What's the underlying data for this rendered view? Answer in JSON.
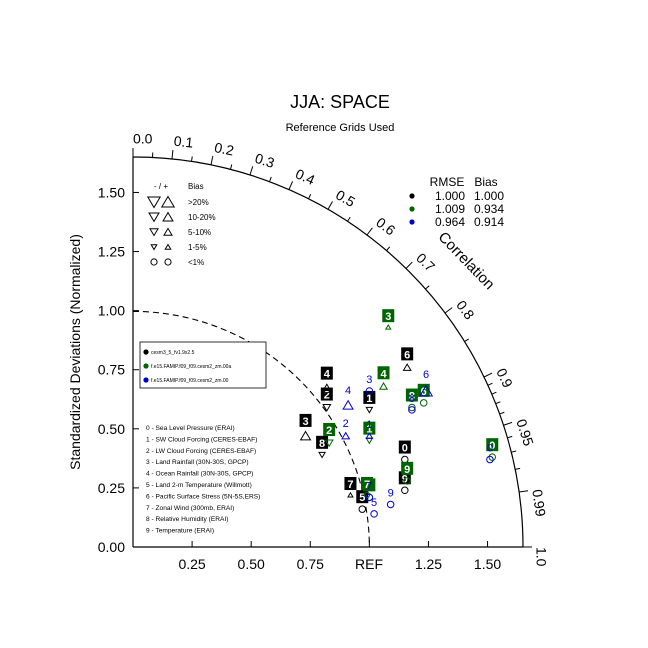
{
  "title": "JJA: SPACE",
  "subtitle": "Reference Grids Used",
  "chart_data": {
    "type": "scatter",
    "diagram": "taylor",
    "ylabel": "Standardized Deviations (Normalized)",
    "arc_label": "Correlation",
    "ref_label": "REF",
    "std_range": [
      0,
      1.65
    ],
    "grid": false,
    "y_ticks": [
      "0.00",
      "0.25",
      "0.50",
      "0.75",
      "1.00",
      "1.25",
      "1.50"
    ],
    "x_ticks": [
      "0.25",
      "0.50",
      "0.75",
      "1.25",
      "1.50"
    ],
    "corr_ticks": [
      {
        "r": 0.0,
        "label": "0.0"
      },
      {
        "r": 0.1,
        "label": "0.1"
      },
      {
        "r": 0.2,
        "label": "0.2"
      },
      {
        "r": 0.3,
        "label": "0.3"
      },
      {
        "r": 0.4,
        "label": "0.4"
      },
      {
        "r": 0.5,
        "label": "0.5"
      },
      {
        "r": 0.6,
        "label": "0.6"
      },
      {
        "r": 0.7,
        "label": "0.7"
      },
      {
        "r": 0.8,
        "label": "0.8"
      },
      {
        "r": 0.9,
        "label": "0.9"
      },
      {
        "r": 0.95,
        "label": "0.95"
      },
      {
        "r": 0.99,
        "label": "0.99"
      },
      {
        "r": 1.0,
        "label": "1.0"
      }
    ],
    "corr_minor": [
      0.05,
      0.15,
      0.25,
      0.35,
      0.45,
      0.55,
      0.65,
      0.75,
      0.85,
      0.91,
      0.92,
      0.93,
      0.94,
      0.96,
      0.97,
      0.98
    ],
    "summary_table": {
      "headers": [
        "RMSE",
        "Bias"
      ],
      "rows": [
        {
          "color": "#000000",
          "rmse": "1.000",
          "bias": "1.000"
        },
        {
          "color": "#006400",
          "rmse": "1.009",
          "bias": "0.934"
        },
        {
          "color": "#0000cc",
          "rmse": "0.964",
          "bias": "0.914"
        }
      ]
    },
    "bias_legend": {
      "header_signs": "- / +",
      "header_bias": "Bias",
      "rows": [
        {
          "label": ">20%",
          "size": 10,
          "shape": "triangle"
        },
        {
          "label": "10-20%",
          "size": 8,
          "shape": "triangle"
        },
        {
          "label": "5-10%",
          "size": 6.5,
          "shape": "triangle"
        },
        {
          "label": "1-5%",
          "size": 4.5,
          "shape": "triangle"
        },
        {
          "label": "<1%",
          "size": 5,
          "shape": "circle"
        }
      ]
    },
    "series": [
      {
        "name": "cesm3_5_fv1.9x2.5",
        "color": "#000000",
        "style": "boxed"
      },
      {
        "name": "f.e15.FAMIP.f09_f09.cesm2_zm.00a",
        "color": "#006400",
        "style": "boxed"
      },
      {
        "name": "f.e15.FAMIP.f09_f09.cesm2_zm.00",
        "color": "#0000cc",
        "style": "plain"
      }
    ],
    "variables": [
      "0 - Sea Level Pressure (ERAI)",
      "1 - SW Cloud Forcing (CERES-EBAF)",
      "2 - LW Cloud Forcing (CERES-EBAF)",
      "3 - Land Rainfall (30N-30S, GPCP)",
      "4 - Ocean Rainfall (30N-30S, GPCP)",
      "5 - Land 2-m Temperature (Willmott)",
      "6 - Pacific Surface Stress (5N-5S,ERS)",
      "7 - Zonal Wind (300mb, ERAI)",
      "8 - Relative Humidity (ERAI)",
      "9 - Temperature (ERAI)"
    ],
    "points": [
      {
        "series": 0,
        "label": "0",
        "x": 1.15,
        "y": 0.37,
        "marker": "circle",
        "dir": "none",
        "size": 5
      },
      {
        "series": 0,
        "label": "1",
        "x": 1.0,
        "y": 0.58,
        "marker": "triangle",
        "dir": "down",
        "size": 5
      },
      {
        "series": 0,
        "label": "2",
        "x": 0.82,
        "y": 0.59,
        "marker": "triangle",
        "dir": "down",
        "size": 6
      },
      {
        "series": 0,
        "label": "3",
        "x": 0.73,
        "y": 0.47,
        "marker": "triangle",
        "dir": "up",
        "size": 8
      },
      {
        "series": 0,
        "label": "4",
        "x": 0.82,
        "y": 0.67,
        "marker": "triangle",
        "dir": "up",
        "size": 8
      },
      {
        "series": 0,
        "label": "5",
        "x": 0.97,
        "y": 0.16,
        "marker": "circle",
        "dir": "none",
        "size": 5
      },
      {
        "series": 0,
        "label": "6",
        "x": 1.16,
        "y": 0.76,
        "marker": "triangle",
        "dir": "up",
        "size": 6
      },
      {
        "series": 0,
        "label": "7",
        "x": 0.92,
        "y": 0.22,
        "marker": "triangle",
        "dir": "up",
        "size": 4
      },
      {
        "series": 0,
        "label": "8",
        "x": 0.8,
        "y": 0.39,
        "marker": "triangle",
        "dir": "down",
        "size": 5
      },
      {
        "series": 0,
        "label": "9",
        "x": 1.15,
        "y": 0.24,
        "marker": "circle",
        "dir": "none",
        "size": 5
      },
      {
        "series": 1,
        "label": "0",
        "x": 1.52,
        "y": 0.38,
        "marker": "circle",
        "dir": "none",
        "size": 5
      },
      {
        "series": 1,
        "label": "1",
        "x": 1.0,
        "y": 0.45,
        "marker": "triangle",
        "dir": "down",
        "size": 5
      },
      {
        "series": 1,
        "label": "2",
        "x": 0.83,
        "y": 0.44,
        "marker": "triangle",
        "dir": "down",
        "size": 6
      },
      {
        "series": 1,
        "label": "3",
        "x": 1.08,
        "y": 0.93,
        "marker": "triangle",
        "dir": "up",
        "size": 4
      },
      {
        "series": 1,
        "label": "4",
        "x": 1.06,
        "y": 0.68,
        "marker": "triangle",
        "dir": "up",
        "size": 6
      },
      {
        "series": 1,
        "label": "5",
        "x": 1.0,
        "y": 0.21,
        "marker": "circle",
        "dir": "none",
        "size": 5
      },
      {
        "series": 1,
        "label": "6",
        "x": 1.23,
        "y": 0.61,
        "marker": "circle",
        "dir": "none",
        "size": 5
      },
      {
        "series": 1,
        "label": "7",
        "x": 0.99,
        "y": 0.22,
        "marker": "circle",
        "dir": "none",
        "size": 4
      },
      {
        "series": 1,
        "label": "8",
        "x": 1.18,
        "y": 0.59,
        "marker": "circle",
        "dir": "none",
        "size": 5
      },
      {
        "series": 1,
        "label": "9",
        "x": 1.16,
        "y": 0.28,
        "marker": "circle",
        "dir": "none",
        "size": 5
      },
      {
        "series": 2,
        "label": "0",
        "x": 1.51,
        "y": 0.37,
        "marker": "circle",
        "dir": "none",
        "size": 5
      },
      {
        "series": 2,
        "label": "1",
        "x": 1.0,
        "y": 0.47,
        "marker": "triangle",
        "dir": "up",
        "size": 5
      },
      {
        "series": 2,
        "label": "2",
        "x": 0.9,
        "y": 0.47,
        "marker": "triangle",
        "dir": "up",
        "size": 6
      },
      {
        "series": 2,
        "label": "3",
        "x": 1.0,
        "y": 0.66,
        "marker": "circle",
        "dir": "none",
        "size": 5
      },
      {
        "series": 2,
        "label": "4",
        "x": 0.91,
        "y": 0.6,
        "marker": "triangle",
        "dir": "up",
        "size": 8
      },
      {
        "series": 2,
        "label": "5",
        "x": 1.02,
        "y": 0.14,
        "marker": "circle",
        "dir": "none",
        "size": 5
      },
      {
        "series": 2,
        "label": "6",
        "x": 1.24,
        "y": 0.66,
        "marker": "triangle",
        "dir": "up",
        "size": 10
      },
      {
        "series": 2,
        "label": "7",
        "x": 1.0,
        "y": 0.21,
        "marker": "circle",
        "dir": "none",
        "size": 5
      },
      {
        "series": 2,
        "label": "8",
        "x": 1.18,
        "y": 0.58,
        "marker": "circle",
        "dir": "none",
        "size": 5
      },
      {
        "series": 2,
        "label": "9",
        "x": 1.09,
        "y": 0.18,
        "marker": "circle",
        "dir": "none",
        "size": 5
      }
    ]
  }
}
